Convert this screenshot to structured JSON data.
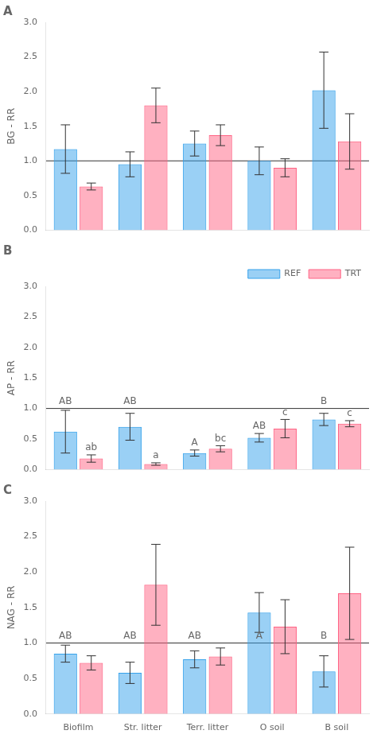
{
  "chart_data": [
    {
      "type": "bar",
      "title": "A",
      "categories": [
        "Biofilm",
        "Str. litter",
        "Terr. litter",
        "O soil",
        "B soil"
      ],
      "y_label": "BG - RR",
      "ylim": [
        0.0,
        3.0
      ],
      "yticks": [
        {
          "value": 0.0,
          "label": "0.0"
        },
        0.5,
        {
          "value": 1.0,
          "label": "1.0"
        },
        1.5,
        {
          "value": 2.0,
          "label": "2.0"
        },
        2.5,
        {
          "value": 3.0,
          "label": "3.0"
        }
      ],
      "reference_line": 1.0,
      "grid": false,
      "tick_labels": "y",
      "series": [
        {
          "name": "REF",
          "values": [
            1.17,
            0.95,
            1.25,
            1.0,
            2.02
          ],
          "errors": [
            0.35,
            0.18,
            0.18,
            0.2,
            0.55
          ]
        },
        {
          "name": "TRT",
          "values": [
            0.63,
            1.8,
            1.37,
            0.9,
            1.28
          ],
          "errors": [
            0.05,
            0.25,
            0.15,
            0.13,
            0.4
          ]
        }
      ]
    },
    {
      "type": "bar",
      "title": "B",
      "categories": [
        "Biofilm",
        "Str. litter",
        "Terr. litter",
        "O soil",
        "B soil"
      ],
      "y_label": "AP - RR",
      "ylim": [
        0.0,
        3.0
      ],
      "yticks": [
        {
          "value": 0.0,
          "label": "0.0"
        },
        0.5,
        {
          "value": 1.0,
          "label": "1.0"
        },
        1.5,
        {
          "value": 2.0,
          "label": "2.0"
        },
        2.5,
        {
          "value": 3.0,
          "label": "3.0"
        }
      ],
      "reference_line": 1.0,
      "grid": false,
      "tick_labels": "y",
      "legend": "upper right",
      "series": [
        {
          "name": "REF",
          "values": [
            0.62,
            0.7,
            0.27,
            0.52,
            0.82
          ],
          "errors": [
            0.35,
            0.22,
            0.05,
            0.07,
            0.1
          ]
        },
        {
          "name": "TRT",
          "values": [
            0.18,
            0.09,
            0.34,
            0.67,
            0.75
          ],
          "errors": [
            0.06,
            0.02,
            0.05,
            0.15,
            0.05
          ]
        }
      ],
      "annotations": [
        {
          "text": "AB",
          "series": "REF",
          "category": "Biofilm",
          "anchor": "line"
        },
        {
          "text": "AB",
          "series": "REF",
          "category": "Str. litter",
          "anchor": "line"
        },
        {
          "text": "A",
          "series": "REF",
          "category": "Terr. litter",
          "anchor": "bar"
        },
        {
          "text": "AB",
          "series": "REF",
          "category": "O soil",
          "anchor": "bar"
        },
        {
          "text": "B",
          "series": "REF",
          "category": "B soil",
          "anchor": "line"
        },
        {
          "text": "ab",
          "series": "TRT",
          "category": "Biofilm",
          "anchor": "bar"
        },
        {
          "text": "a",
          "series": "TRT",
          "category": "Str. litter",
          "anchor": "bar"
        },
        {
          "text": "bc",
          "series": "TRT",
          "category": "Terr. litter",
          "anchor": "bar"
        },
        {
          "text": "c",
          "series": "TRT",
          "category": "O soil",
          "anchor": "bar"
        },
        {
          "text": "c",
          "series": "TRT",
          "category": "B soil",
          "anchor": "bar"
        }
      ]
    },
    {
      "type": "bar",
      "title": "C",
      "categories": [
        "Biofilm",
        "Str. litter",
        "Terr. litter",
        "O soil",
        "B soil"
      ],
      "y_label": "NAG - RR",
      "ylim": [
        0.0,
        3.0
      ],
      "yticks": [
        {
          "value": 0.0,
          "label": "0.0"
        },
        0.5,
        {
          "value": 1.0,
          "label": "1.0"
        },
        1.5,
        {
          "value": 2.0,
          "label": "2.0"
        },
        2.5,
        {
          "value": 3.0,
          "label": "3.0"
        }
      ],
      "reference_line": 1.0,
      "grid": false,
      "series": [
        {
          "name": "REF",
          "values": [
            0.85,
            0.58,
            0.77,
            1.43,
            0.6
          ],
          "errors": [
            0.12,
            0.15,
            0.12,
            0.28,
            0.22
          ]
        },
        {
          "name": "TRT",
          "values": [
            0.72,
            1.82,
            0.81,
            1.23,
            1.7
          ],
          "errors": [
            0.1,
            0.57,
            0.12,
            0.38,
            0.65
          ]
        }
      ],
      "annotations": [
        {
          "text": "AB",
          "series": "REF",
          "category": "Biofilm",
          "anchor": "line"
        },
        {
          "text": "AB",
          "series": "REF",
          "category": "Str. litter",
          "anchor": "line"
        },
        {
          "text": "AB",
          "series": "REF",
          "category": "Terr. litter",
          "anchor": "line"
        },
        {
          "text": "A",
          "series": "REF",
          "category": "O soil",
          "anchor": "line"
        },
        {
          "text": "B",
          "series": "REF",
          "category": "B soil",
          "anchor": "line"
        }
      ]
    }
  ]
}
